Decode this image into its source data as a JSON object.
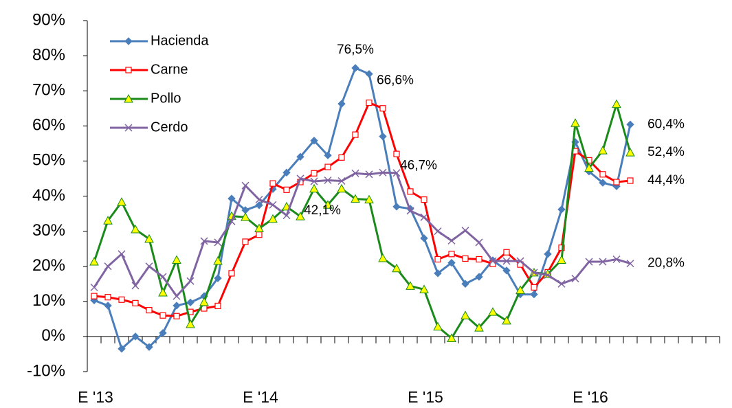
{
  "chart_data": {
    "type": "line",
    "categories": [
      "E '13",
      null,
      null,
      null,
      null,
      null,
      null,
      null,
      null,
      null,
      null,
      null,
      "E '14",
      null,
      null,
      null,
      null,
      null,
      null,
      null,
      null,
      null,
      null,
      null,
      "E '15",
      null,
      null,
      null,
      null,
      null,
      null,
      null,
      null,
      null,
      null,
      null,
      "E '16",
      null,
      null,
      null,
      null,
      null,
      null,
      null,
      null,
      null
    ],
    "ylim": [
      -10,
      90
    ],
    "yticks": [
      {
        "value": -10,
        "label": "-10%"
      },
      {
        "value": 0,
        "label": "0%"
      },
      {
        "value": 10,
        "label": "10%"
      },
      {
        "value": 20,
        "label": "20%"
      },
      {
        "value": 30,
        "label": "30%"
      },
      {
        "value": 40,
        "label": "40%"
      },
      {
        "value": 50,
        "label": "50%"
      },
      {
        "value": 60,
        "label": "60%"
      },
      {
        "value": 70,
        "label": "70%"
      },
      {
        "value": 80,
        "label": "80%"
      },
      {
        "value": 90,
        "label": "90%"
      }
    ],
    "legend": "top-left",
    "series": [
      {
        "name": "Hacienda",
        "color": "#4a7ebb",
        "marker": "diamond",
        "values": [
          10.3,
          8.8,
          -3.5,
          0,
          -3,
          1,
          8.8,
          9.7,
          11.5,
          16.6,
          39.3,
          36,
          37.4,
          42,
          46.7,
          51.2,
          55.8,
          51.6,
          66.3,
          76.5,
          74.8,
          57,
          37,
          36.4,
          28,
          18,
          21,
          15,
          17,
          21.7,
          18.8,
          12,
          12,
          23.5,
          36.2,
          55.4,
          47,
          43.8,
          42.8,
          60.4,
          null,
          null,
          null,
          null,
          null,
          null
        ],
        "value_labels": [
          null,
          null,
          null,
          null,
          null,
          null,
          null,
          null,
          null,
          null,
          null,
          null,
          null,
          null,
          null,
          null,
          null,
          null,
          null,
          "76,5%",
          null,
          null,
          null,
          null,
          null,
          null,
          null,
          null,
          null,
          null,
          null,
          null,
          null,
          null,
          null,
          null,
          null,
          null,
          null,
          "60,4%",
          null,
          null,
          null,
          null,
          null,
          null
        ]
      },
      {
        "name": "Carne",
        "color": "#ff0000",
        "marker": "square",
        "values": [
          11.5,
          11.2,
          10.5,
          9.5,
          7.5,
          6,
          5.8,
          7,
          8,
          8.7,
          18,
          27,
          29,
          43.6,
          41.8,
          44,
          46.5,
          48.3,
          51,
          57.5,
          66.6,
          65,
          52,
          41.3,
          39,
          22,
          23.5,
          22.2,
          22,
          20.7,
          24,
          20.5,
          14,
          18.3,
          25.3,
          52.8,
          50.2,
          46.2,
          44,
          44.4,
          null,
          null,
          null,
          null,
          null,
          null
        ],
        "value_labels": [
          null,
          null,
          null,
          null,
          null,
          null,
          null,
          null,
          null,
          null,
          null,
          null,
          null,
          null,
          null,
          null,
          null,
          null,
          null,
          null,
          "66,6%",
          null,
          null,
          null,
          null,
          null,
          null,
          null,
          null,
          null,
          null,
          null,
          null,
          null,
          null,
          null,
          null,
          null,
          null,
          "44,4%",
          null,
          null,
          null,
          null,
          null,
          null
        ]
      },
      {
        "name": "Pollo",
        "color": "#1a8a1a",
        "marker": "triangle",
        "values": [
          21.3,
          33,
          38.3,
          30.5,
          27.8,
          12.5,
          21.8,
          3.5,
          9.8,
          21.5,
          34.3,
          34,
          30.8,
          33.5,
          37,
          34.2,
          42.1,
          37.5,
          42.1,
          39.2,
          39,
          22.3,
          19.4,
          14.4,
          13.4,
          2.8,
          -0.5,
          6,
          2.5,
          7,
          4.5,
          13.2,
          18.2,
          17.8,
          21.8,
          60.8,
          48,
          53,
          66.2,
          52.4,
          null,
          null,
          null,
          null,
          null,
          null
        ],
        "value_labels": [
          null,
          null,
          null,
          null,
          null,
          null,
          null,
          null,
          null,
          null,
          null,
          null,
          null,
          null,
          null,
          null,
          null,
          null,
          "42,1%",
          null,
          null,
          null,
          null,
          null,
          null,
          null,
          null,
          null,
          null,
          null,
          null,
          null,
          null,
          null,
          null,
          null,
          null,
          null,
          null,
          "52,4%",
          null,
          null,
          null,
          null,
          null,
          null
        ]
      },
      {
        "name": "Cerdo",
        "color": "#8064a2",
        "marker": "x",
        "values": [
          14,
          20,
          23.5,
          14.5,
          20,
          17,
          11.5,
          15.8,
          27.2,
          26.8,
          32.8,
          43,
          39,
          37.5,
          34.5,
          45,
          44.2,
          44.5,
          44.3,
          46.5,
          46.2,
          46.7,
          46.6,
          35.8,
          34,
          30,
          27.3,
          30.2,
          26.8,
          21.5,
          21.5,
          21.5,
          18.2,
          17.5,
          15,
          16.5,
          21.3,
          21.3,
          22,
          20.8,
          null,
          null,
          null,
          null,
          null,
          null
        ],
        "value_labels": [
          null,
          null,
          null,
          null,
          null,
          null,
          null,
          null,
          null,
          null,
          null,
          null,
          null,
          null,
          null,
          null,
          null,
          null,
          null,
          null,
          null,
          "46,7%",
          null,
          null,
          null,
          null,
          null,
          null,
          null,
          null,
          null,
          null,
          null,
          null,
          null,
          null,
          null,
          null,
          null,
          "20,8%",
          null,
          null,
          null,
          null,
          null,
          null
        ]
      }
    ]
  }
}
